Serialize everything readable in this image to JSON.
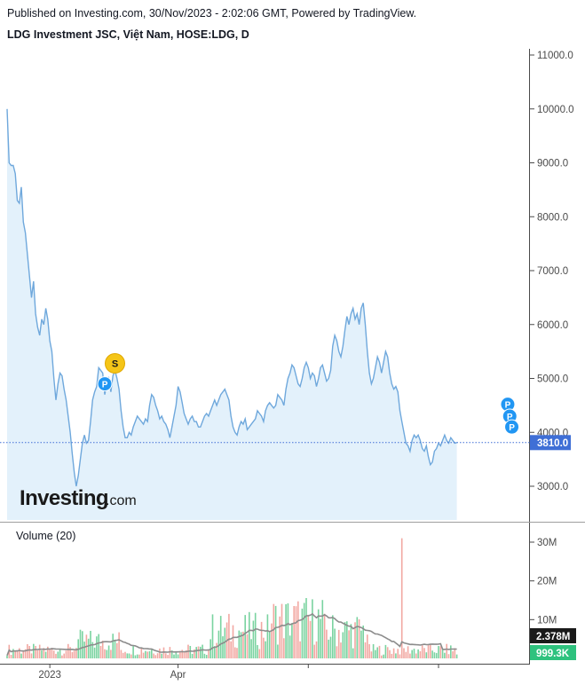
{
  "header": {
    "published": "Published on Investing.com, 30/Nov/2023 - 2:02:06 GMT, Powered by TradingView.",
    "instrument": "LDG Investment JSC, Việt Nam, HOSE:LDG, D"
  },
  "logo": {
    "main": "Investing",
    "sub": ".com"
  },
  "colors": {
    "line": "#6fa8dc",
    "area": "#e3f1fb",
    "last_price_box": "#3f6fd6",
    "up_volume": "#7ad3a0",
    "down_volume": "#f2a8a2",
    "volume_ma": "#8c8c8c",
    "axis": "#4a4a4a",
    "dividend_marker": "#2196f3",
    "split_marker": "#f5c518"
  },
  "chart_data": [
    {
      "type": "line",
      "panel": "price",
      "y_ticks": [
        "11000.0",
        "10000.0",
        "9000.0",
        "8000.0",
        "7000.0",
        "6000.0",
        "5000.0",
        "4000.0",
        "3000.0"
      ],
      "ylim": [
        2400,
        11100
      ],
      "x_ticks": [
        {
          "label": "2023",
          "x": 21
        },
        {
          "label": "Apr",
          "x": 84
        },
        {
          "label": "",
          "x": 148
        },
        {
          "label": "",
          "x": 212
        }
      ],
      "xlim": [
        0,
        253
      ],
      "last_price_label": "3810.0",
      "last_price": 3810,
      "values": [
        10000,
        9000,
        8950,
        8950,
        8800,
        8300,
        8250,
        8550,
        7900,
        7700,
        7300,
        6900,
        6500,
        6800,
        6200,
        5950,
        5800,
        6100,
        6000,
        6300,
        6100,
        5700,
        5500,
        5000,
        4600,
        4900,
        5100,
        5050,
        4800,
        4600,
        4300,
        4000,
        3600,
        3250,
        3000,
        3200,
        3500,
        3800,
        3950,
        3800,
        3850,
        4200,
        4600,
        4750,
        4850,
        5200,
        5150,
        5100,
        4700,
        4900,
        5000,
        4750,
        5050,
        5150,
        5000,
        4800,
        4400,
        4100,
        3900,
        3900,
        4000,
        3950,
        4100,
        4200,
        4300,
        4250,
        4200,
        4150,
        4250,
        4200,
        4500,
        4700,
        4650,
        4500,
        4400,
        4250,
        4300,
        4200,
        4150,
        4050,
        3900,
        4100,
        4300,
        4500,
        4850,
        4750,
        4550,
        4350,
        4250,
        4150,
        4250,
        4300,
        4200,
        4200,
        4100,
        4100,
        4200,
        4300,
        4350,
        4300,
        4400,
        4500,
        4600,
        4500,
        4600,
        4700,
        4750,
        4800,
        4700,
        4600,
        4300,
        4100,
        4000,
        3950,
        4100,
        4200,
        4150,
        4250,
        4050,
        4100,
        4150,
        4200,
        4250,
        4400,
        4350,
        4300,
        4200,
        4400,
        4500,
        4550,
        4500,
        4450,
        4500,
        4700,
        4650,
        4600,
        4500,
        4800,
        5000,
        5100,
        5250,
        5200,
        5050,
        4900,
        4850,
        5000,
        5200,
        5300,
        5200,
        5000,
        5100,
        5050,
        4850,
        5000,
        5200,
        5250,
        5100,
        4950,
        5000,
        5150,
        5600,
        5800,
        5700,
        5500,
        5400,
        5600,
        5900,
        6150,
        6000,
        6200,
        6300,
        6100,
        6200,
        6000,
        6300,
        6400,
        6000,
        5500,
        5100,
        4900,
        5000,
        5200,
        5400,
        5300,
        5100,
        5300,
        5500,
        5400,
        5100,
        4900,
        4800,
        4850,
        4750,
        4400,
        4200,
        4000,
        3800,
        3750,
        3650,
        3850,
        3950,
        3900,
        3950,
        3850,
        3700,
        3650,
        3750,
        3550,
        3400,
        3450,
        3650,
        3700,
        3800,
        3750,
        3850,
        3950,
        3850,
        3800,
        3900,
        3850,
        3800,
        3810
      ],
      "dividend_markers": [
        {
          "label": "P",
          "x": 48,
          "y": 4900
        },
        {
          "label": "P",
          "x": 246,
          "y": 4520
        },
        {
          "label": "P",
          "x": 247,
          "y": 4300
        },
        {
          "label": "P",
          "x": 248,
          "y": 4100
        }
      ],
      "split_markers": [
        {
          "label": "S",
          "x": 53,
          "y": 5280
        }
      ]
    },
    {
      "type": "bar",
      "panel": "volume",
      "indicator_label": "Volume (20)",
      "y_ticks": [
        "30M",
        "20M",
        "10M"
      ],
      "ylim": [
        0,
        34000000
      ],
      "last_volume_label": "999.3K",
      "volume_ma_label": "2.378M",
      "volume_ma_value": 2378000,
      "last_volume_value": 999300
    }
  ]
}
